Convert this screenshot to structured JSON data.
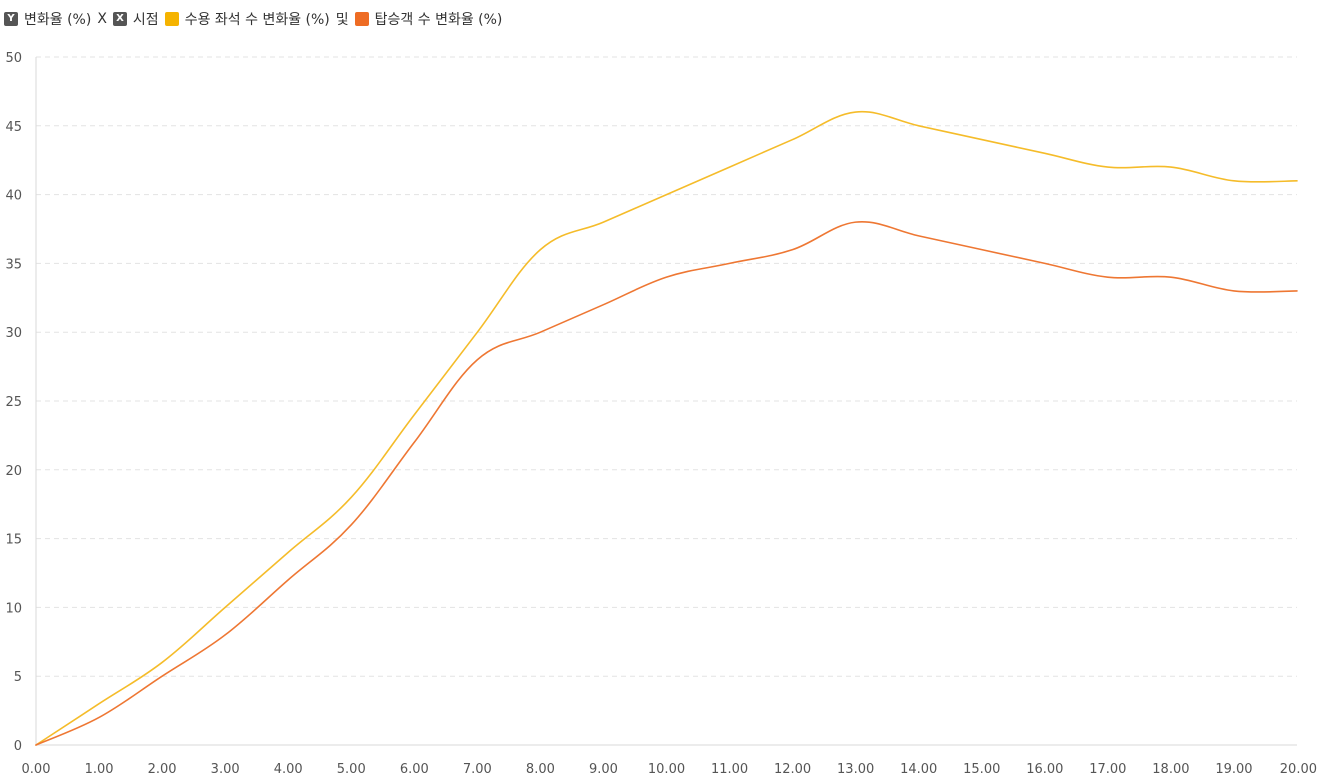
{
  "legend": {
    "y_badge": "Y",
    "y_axis_title": "변화율 (%)",
    "x_badge": "X",
    "x_axis_title": "시점",
    "series1_label": "수용 좌석 수 변화율 (%)",
    "conjunction": "및",
    "series2_label": "탑승객 수 변화율 (%)"
  },
  "chart_data": {
    "type": "line",
    "title": "",
    "xlabel": "시점",
    "ylabel": "변화율 (%)",
    "x": [
      0,
      1,
      2,
      3,
      4,
      5,
      6,
      7,
      8,
      9,
      10,
      11,
      12,
      13,
      14,
      15,
      16,
      17,
      18,
      19,
      20
    ],
    "x_tick_labels": [
      "0.00",
      "1.00",
      "2.00",
      "3.00",
      "4.00",
      "5.00",
      "6.00",
      "7.00",
      "8.00",
      "9.00",
      "10.00",
      "11.00",
      "12.00",
      "13.00",
      "14.00",
      "15.00",
      "16.00",
      "17.00",
      "18.00",
      "19.00",
      "20.00"
    ],
    "xlim": [
      0,
      20
    ],
    "ylim": [
      0,
      50
    ],
    "y_ticks": [
      0,
      5,
      10,
      15,
      20,
      25,
      30,
      35,
      40,
      45,
      50
    ],
    "grid": true,
    "legend_position": "top-left",
    "series": [
      {
        "name": "수용 좌석 수 변화율 (%)",
        "color": "#F5BC2A",
        "values": [
          0,
          3,
          6,
          10,
          14,
          18,
          24,
          30,
          36,
          38,
          40,
          42,
          44,
          46,
          45,
          44,
          43,
          42,
          42,
          41,
          41
        ]
      },
      {
        "name": "탑승객 수 변화율 (%)",
        "color": "#EE7733",
        "values": [
          0,
          2,
          5,
          8,
          12,
          16,
          22,
          28,
          30,
          32,
          34,
          35,
          36,
          38,
          37,
          36,
          35,
          34,
          34,
          33,
          33
        ]
      }
    ]
  },
  "colors": {
    "series1_swatch": "#F5B300",
    "series2_swatch": "#EE6C24",
    "badge": "#555555"
  }
}
